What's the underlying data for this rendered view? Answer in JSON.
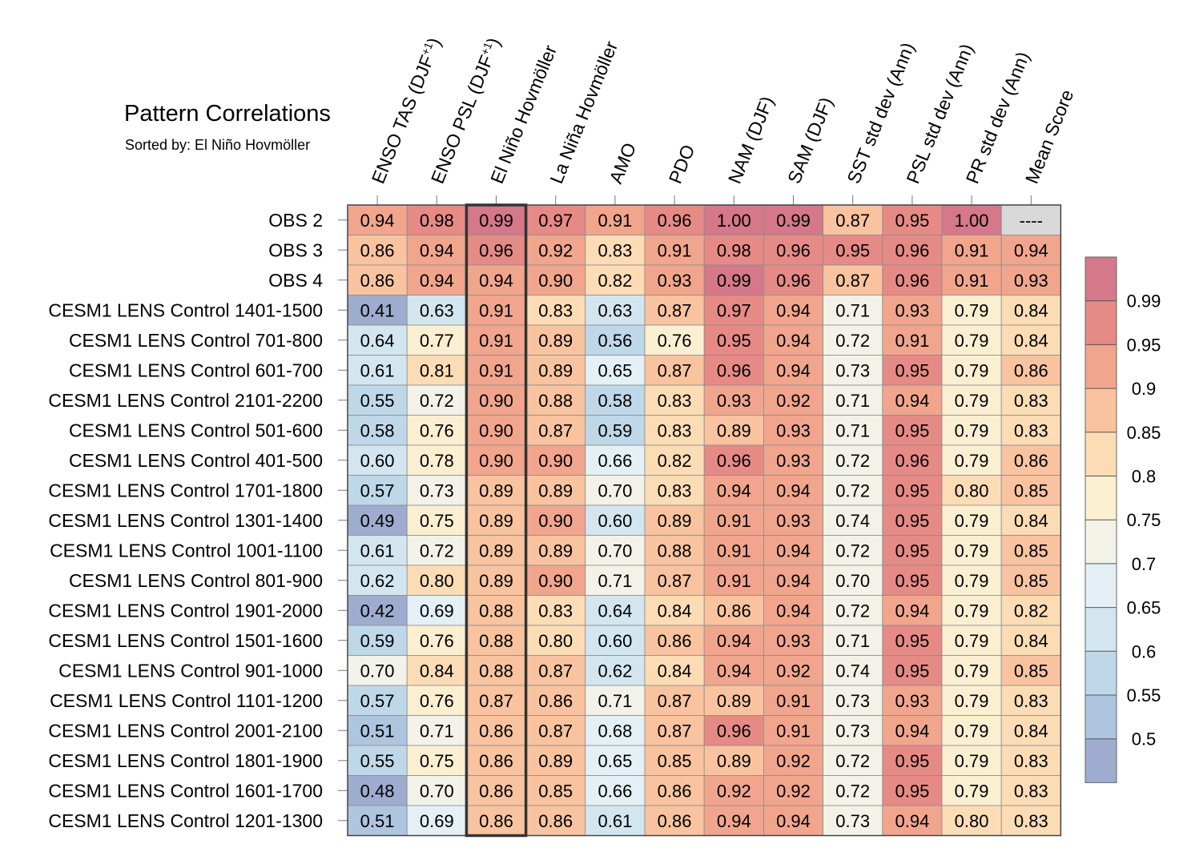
{
  "chart_data": {
    "type": "heatmap",
    "title": "Pattern Correlations",
    "subtitle": "Sorted by: El Niño Hovmöller",
    "columns": [
      {
        "label": "ENSO TAS (DJF",
        "sup": "+1",
        "tail": ")"
      },
      {
        "label": "ENSO PSL (DJF",
        "sup": "+1",
        "tail": ")"
      },
      {
        "label": "El Niño Hovmöller",
        "sup": "",
        "tail": ""
      },
      {
        "label": "La Niña Hovmöller",
        "sup": "",
        "tail": ""
      },
      {
        "label": "AMO",
        "sup": "",
        "tail": ""
      },
      {
        "label": "PDO",
        "sup": "",
        "tail": ""
      },
      {
        "label": "NAM (DJF)",
        "sup": "",
        "tail": ""
      },
      {
        "label": "SAM (DJF)",
        "sup": "",
        "tail": ""
      },
      {
        "label": "SST std dev (Ann)",
        "sup": "",
        "tail": ""
      },
      {
        "label": "PSL std dev (Ann)",
        "sup": "",
        "tail": ""
      },
      {
        "label": "PR std dev (Ann)",
        "sup": "",
        "tail": ""
      },
      {
        "label": "Mean Score",
        "sup": "",
        "tail": ""
      }
    ],
    "highlighted_column": "El Niño Hovmöller",
    "missing_label": "----",
    "missing_color": "#d9d9d9",
    "rows": [
      {
        "label": "OBS 2",
        "values": [
          "0.94",
          "0.98",
          "0.99",
          "0.97",
          "0.91",
          "0.96",
          "1.00",
          "0.99",
          "0.87",
          "0.95",
          "1.00",
          null
        ]
      },
      {
        "label": "OBS 3",
        "values": [
          "0.86",
          "0.94",
          "0.96",
          "0.92",
          "0.83",
          "0.91",
          "0.98",
          "0.96",
          "0.95",
          "0.96",
          "0.91",
          "0.94"
        ]
      },
      {
        "label": "OBS 4",
        "values": [
          "0.86",
          "0.94",
          "0.94",
          "0.90",
          "0.82",
          "0.93",
          "0.99",
          "0.96",
          "0.87",
          "0.96",
          "0.91",
          "0.93"
        ]
      },
      {
        "label": "CESM1 LENS Control 1401-1500",
        "values": [
          "0.41",
          "0.63",
          "0.91",
          "0.83",
          "0.63",
          "0.87",
          "0.97",
          "0.94",
          "0.71",
          "0.93",
          "0.79",
          "0.84"
        ]
      },
      {
        "label": "CESM1 LENS Control 701-800",
        "values": [
          "0.64",
          "0.77",
          "0.91",
          "0.89",
          "0.56",
          "0.76",
          "0.95",
          "0.94",
          "0.72",
          "0.91",
          "0.79",
          "0.84"
        ]
      },
      {
        "label": "CESM1 LENS Control 601-700",
        "values": [
          "0.61",
          "0.81",
          "0.91",
          "0.89",
          "0.65",
          "0.87",
          "0.96",
          "0.94",
          "0.73",
          "0.95",
          "0.79",
          "0.86"
        ]
      },
      {
        "label": "CESM1 LENS Control 2101-2200",
        "values": [
          "0.55",
          "0.72",
          "0.90",
          "0.88",
          "0.58",
          "0.83",
          "0.93",
          "0.92",
          "0.71",
          "0.94",
          "0.79",
          "0.83"
        ]
      },
      {
        "label": "CESM1 LENS Control 501-600",
        "values": [
          "0.58",
          "0.76",
          "0.90",
          "0.87",
          "0.59",
          "0.83",
          "0.89",
          "0.93",
          "0.71",
          "0.95",
          "0.79",
          "0.83"
        ]
      },
      {
        "label": "CESM1 LENS Control 401-500",
        "values": [
          "0.60",
          "0.78",
          "0.90",
          "0.90",
          "0.66",
          "0.82",
          "0.96",
          "0.93",
          "0.72",
          "0.96",
          "0.79",
          "0.86"
        ]
      },
      {
        "label": "CESM1 LENS Control 1701-1800",
        "values": [
          "0.57",
          "0.73",
          "0.89",
          "0.89",
          "0.70",
          "0.83",
          "0.94",
          "0.94",
          "0.72",
          "0.95",
          "0.80",
          "0.85"
        ]
      },
      {
        "label": "CESM1 LENS Control 1301-1400",
        "values": [
          "0.49",
          "0.75",
          "0.89",
          "0.90",
          "0.60",
          "0.89",
          "0.91",
          "0.93",
          "0.74",
          "0.95",
          "0.79",
          "0.84"
        ]
      },
      {
        "label": "CESM1 LENS Control 1001-1100",
        "values": [
          "0.61",
          "0.72",
          "0.89",
          "0.89",
          "0.70",
          "0.88",
          "0.91",
          "0.94",
          "0.72",
          "0.95",
          "0.79",
          "0.85"
        ]
      },
      {
        "label": "CESM1 LENS Control 801-900",
        "values": [
          "0.62",
          "0.80",
          "0.89",
          "0.90",
          "0.71",
          "0.87",
          "0.91",
          "0.94",
          "0.70",
          "0.95",
          "0.79",
          "0.85"
        ]
      },
      {
        "label": "CESM1 LENS Control 1901-2000",
        "values": [
          "0.42",
          "0.69",
          "0.88",
          "0.83",
          "0.64",
          "0.84",
          "0.86",
          "0.94",
          "0.72",
          "0.94",
          "0.79",
          "0.82"
        ]
      },
      {
        "label": "CESM1 LENS Control 1501-1600",
        "values": [
          "0.59",
          "0.76",
          "0.88",
          "0.80",
          "0.60",
          "0.86",
          "0.94",
          "0.93",
          "0.71",
          "0.95",
          "0.79",
          "0.84"
        ]
      },
      {
        "label": "CESM1 LENS Control 901-1000",
        "values": [
          "0.70",
          "0.84",
          "0.88",
          "0.87",
          "0.62",
          "0.84",
          "0.94",
          "0.92",
          "0.74",
          "0.95",
          "0.79",
          "0.85"
        ]
      },
      {
        "label": "CESM1 LENS Control 1101-1200",
        "values": [
          "0.57",
          "0.76",
          "0.87",
          "0.86",
          "0.71",
          "0.87",
          "0.89",
          "0.91",
          "0.73",
          "0.93",
          "0.79",
          "0.83"
        ]
      },
      {
        "label": "CESM1 LENS Control 2001-2100",
        "values": [
          "0.51",
          "0.71",
          "0.86",
          "0.87",
          "0.68",
          "0.87",
          "0.96",
          "0.91",
          "0.73",
          "0.94",
          "0.79",
          "0.84"
        ]
      },
      {
        "label": "CESM1 LENS Control 1801-1900",
        "values": [
          "0.55",
          "0.75",
          "0.86",
          "0.89",
          "0.65",
          "0.85",
          "0.89",
          "0.92",
          "0.72",
          "0.95",
          "0.79",
          "0.83"
        ]
      },
      {
        "label": "CESM1 LENS Control 1601-1700",
        "values": [
          "0.48",
          "0.70",
          "0.86",
          "0.85",
          "0.66",
          "0.86",
          "0.92",
          "0.92",
          "0.72",
          "0.95",
          "0.79",
          "0.83"
        ]
      },
      {
        "label": "CESM1 LENS Control 1201-1300",
        "values": [
          "0.51",
          "0.69",
          "0.86",
          "0.86",
          "0.61",
          "0.86",
          "0.94",
          "0.94",
          "0.73",
          "0.94",
          "0.80",
          "0.83"
        ]
      }
    ],
    "colorbar": {
      "boundaries": [
        0.5,
        0.55,
        0.6,
        0.65,
        0.7,
        0.75,
        0.8,
        0.85,
        0.9,
        0.95,
        0.99
      ],
      "tick_labels": [
        "0.5",
        "0.55",
        "0.6",
        "0.65",
        "0.7",
        "0.75",
        "0.8",
        "0.85",
        "0.9",
        "0.95",
        "0.99"
      ],
      "colors": [
        "#9eacd0",
        "#aec5e0",
        "#bfd8e9",
        "#d3e6ef",
        "#e4f0f5",
        "#f2f2e8",
        "#fbefd2",
        "#fbdcb4",
        "#f8c39e",
        "#f1a58d",
        "#e68a85",
        "#d4788a"
      ]
    }
  }
}
